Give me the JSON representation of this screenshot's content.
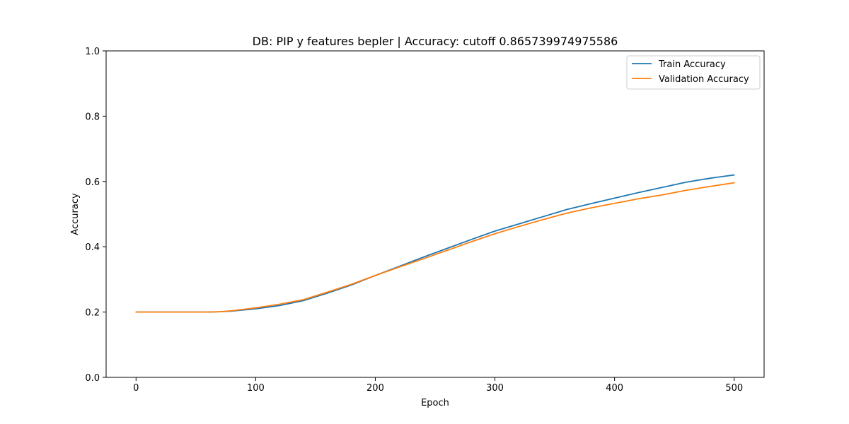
{
  "chart_data": {
    "type": "line",
    "title": "DB: PIP y features bepler | Accuracy: cutoff 0.865739974975586",
    "xlabel": "Epoch",
    "ylabel": "Accuracy",
    "xlim": [
      -25,
      525
    ],
    "ylim": [
      0.0,
      1.0
    ],
    "xticks": [
      0,
      100,
      200,
      300,
      400,
      500
    ],
    "yticks": [
      0.0,
      0.2,
      0.4,
      0.6,
      0.8,
      1.0
    ],
    "xtick_labels": [
      "0",
      "100",
      "200",
      "300",
      "400",
      "500"
    ],
    "ytick_labels": [
      "0.0",
      "0.2",
      "0.4",
      "0.6",
      "0.8",
      "1.0"
    ],
    "grid": false,
    "legend_position": "top-right",
    "series": [
      {
        "name": "Train Accuracy",
        "color": "#1f77b4",
        "x": [
          0,
          20,
          40,
          60,
          70,
          80,
          100,
          120,
          140,
          160,
          180,
          200,
          220,
          240,
          260,
          280,
          300,
          320,
          340,
          360,
          380,
          400,
          420,
          440,
          460,
          480,
          500
        ],
        "y": [
          0.2,
          0.2,
          0.2,
          0.2,
          0.201,
          0.203,
          0.21,
          0.22,
          0.235,
          0.258,
          0.283,
          0.312,
          0.34,
          0.368,
          0.395,
          0.422,
          0.448,
          0.47,
          0.492,
          0.514,
          0.532,
          0.549,
          0.566,
          0.582,
          0.598,
          0.61,
          0.62
        ]
      },
      {
        "name": "Validation Accuracy",
        "color": "#ff7f0e",
        "x": [
          0,
          20,
          40,
          60,
          70,
          80,
          100,
          120,
          140,
          160,
          180,
          200,
          220,
          240,
          260,
          280,
          300,
          320,
          340,
          360,
          380,
          400,
          420,
          440,
          460,
          480,
          500
        ],
        "y": [
          0.2,
          0.2,
          0.2,
          0.2,
          0.201,
          0.204,
          0.213,
          0.224,
          0.238,
          0.261,
          0.285,
          0.312,
          0.338,
          0.363,
          0.389,
          0.415,
          0.44,
          0.462,
          0.483,
          0.503,
          0.519,
          0.533,
          0.547,
          0.559,
          0.573,
          0.585,
          0.596
        ]
      }
    ]
  }
}
